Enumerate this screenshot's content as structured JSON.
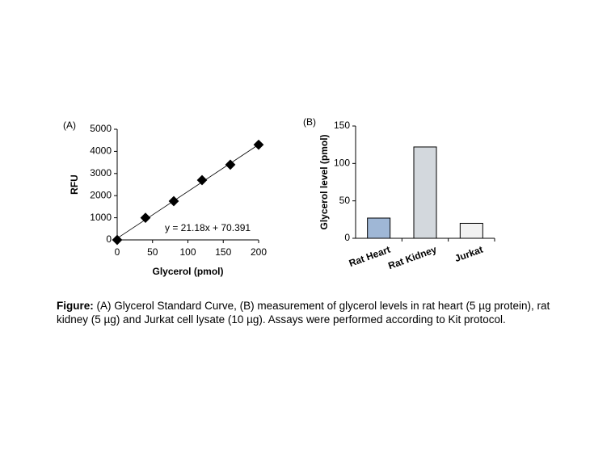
{
  "chart_data": [
    {
      "type": "scatter",
      "label": "(A)",
      "xlabel": "Glycerol (pmol)",
      "ylabel": "RFU",
      "x": [
        0,
        40,
        80,
        120,
        160,
        200
      ],
      "values": [
        0,
        1000,
        1750,
        2700,
        3400,
        4300
      ],
      "color": "#000000",
      "xlim": [
        0,
        200
      ],
      "xticks": [
        0,
        50,
        100,
        150,
        200
      ],
      "ylim": [
        0,
        5000
      ],
      "yticks": [
        0,
        1000,
        2000,
        3000,
        4000,
        5000
      ],
      "trendline": {
        "slope": 21.18,
        "intercept": 70.391,
        "label": "y = 21.18x + 70.391"
      }
    },
    {
      "type": "bar",
      "label": "(B)",
      "ylabel": "Glycerol level (pmol)",
      "categories": [
        "Rat Heart",
        "Rat Kidney",
        "Jurkat"
      ],
      "values": [
        27,
        122,
        20
      ],
      "colors": [
        "#9fb7d6",
        "#d3d8dd",
        "#f2f2f2"
      ],
      "ylim": [
        0,
        150
      ],
      "yticks": [
        0,
        50,
        100,
        150
      ]
    }
  ],
  "caption": {
    "label": "Figure:",
    "text": "(A) Glycerol Standard Curve, (B) measurement of glycerol levels in rat heart (5 µg protein), rat kidney (5 µg) and Jurkat cell lysate (10 µg). Assays were performed according to Kit protocol."
  }
}
